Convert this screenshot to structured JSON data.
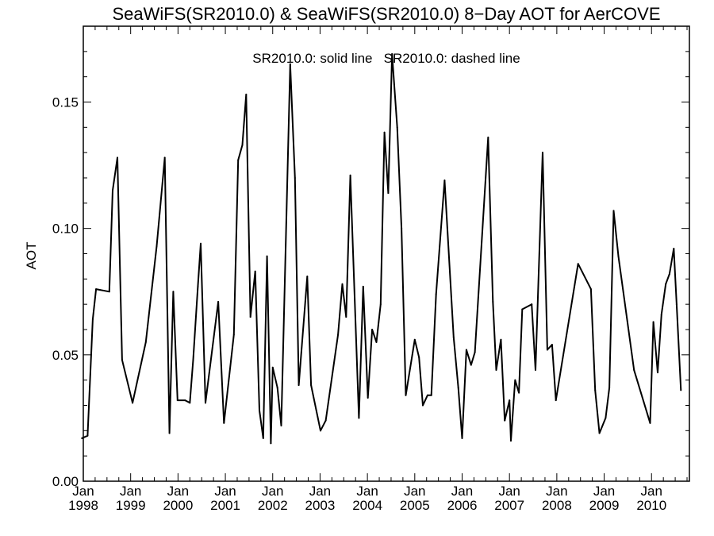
{
  "chart_data": {
    "type": "line",
    "title": "SeaWiFS(SR2010.0) & SeaWiFS(SR2010.0) 8−Day AOT for AerCOVE",
    "annotation": "SR2010.0: solid line   SR2010.0: dashed line",
    "ylabel": "AOT",
    "xlabel": "",
    "xlim": [
      1998.0,
      2010.8
    ],
    "ylim": [
      0.0,
      0.18
    ],
    "y_ticks": [
      "0.00",
      "0.05",
      "0.10",
      "0.15"
    ],
    "x_ticks": [
      {
        "month": "Jan",
        "year": "1998"
      },
      {
        "month": "Jan",
        "year": "1999"
      },
      {
        "month": "Jan",
        "year": "2000"
      },
      {
        "month": "Jan",
        "year": "2001"
      },
      {
        "month": "Jan",
        "year": "2002"
      },
      {
        "month": "Jan",
        "year": "2003"
      },
      {
        "month": "Jan",
        "year": "2004"
      },
      {
        "month": "Jan",
        "year": "2005"
      },
      {
        "month": "Jan",
        "year": "2006"
      },
      {
        "month": "Jan",
        "year": "2007"
      },
      {
        "month": "Jan",
        "year": "2008"
      },
      {
        "month": "Jan",
        "year": "2009"
      },
      {
        "month": "Jan",
        "year": "2010"
      }
    ],
    "line_color": "#000000",
    "series": [
      {
        "style": "solid",
        "points": [
          [
            1997.97,
            0.017
          ],
          [
            1998.09,
            0.018
          ],
          [
            1998.2,
            0.064
          ],
          [
            1998.27,
            0.076
          ],
          [
            1998.55,
            0.075
          ],
          [
            1998.62,
            0.115
          ],
          [
            1998.72,
            0.128
          ],
          [
            1998.82,
            0.048
          ],
          [
            1999.04,
            0.031
          ],
          [
            1999.32,
            0.055
          ],
          [
            1999.55,
            0.093
          ],
          [
            1999.72,
            0.128
          ],
          [
            1999.82,
            0.019
          ],
          [
            1999.9,
            0.075
          ],
          [
            1999.99,
            0.032
          ],
          [
            2000.15,
            0.032
          ],
          [
            2000.25,
            0.031
          ],
          [
            2000.32,
            0.048
          ],
          [
            2000.42,
            0.077
          ],
          [
            2000.48,
            0.094
          ],
          [
            2000.58,
            0.031
          ],
          [
            2000.85,
            0.071
          ],
          [
            2000.97,
            0.023
          ],
          [
            2001.18,
            0.058
          ],
          [
            2001.27,
            0.127
          ],
          [
            2001.36,
            0.133
          ],
          [
            2001.44,
            0.153
          ],
          [
            2001.53,
            0.065
          ],
          [
            2001.63,
            0.083
          ],
          [
            2001.72,
            0.028
          ],
          [
            2001.8,
            0.017
          ],
          [
            2001.88,
            0.089
          ],
          [
            2001.96,
            0.015
          ],
          [
            2002.0,
            0.045
          ],
          [
            2002.1,
            0.037
          ],
          [
            2002.18,
            0.022
          ],
          [
            2002.37,
            0.165
          ],
          [
            2002.47,
            0.12
          ],
          [
            2002.55,
            0.038
          ],
          [
            2002.73,
            0.081
          ],
          [
            2002.81,
            0.038
          ],
          [
            2003.01,
            0.02
          ],
          [
            2003.12,
            0.024
          ],
          [
            2003.38,
            0.058
          ],
          [
            2003.47,
            0.078
          ],
          [
            2003.55,
            0.065
          ],
          [
            2003.64,
            0.121
          ],
          [
            2003.82,
            0.025
          ],
          [
            2003.91,
            0.077
          ],
          [
            2004.01,
            0.033
          ],
          [
            2004.1,
            0.06
          ],
          [
            2004.19,
            0.055
          ],
          [
            2004.28,
            0.07
          ],
          [
            2004.36,
            0.138
          ],
          [
            2004.44,
            0.114
          ],
          [
            2004.52,
            0.169
          ],
          [
            2004.63,
            0.14
          ],
          [
            2004.72,
            0.1
          ],
          [
            2004.81,
            0.034
          ],
          [
            2005.0,
            0.056
          ],
          [
            2005.09,
            0.049
          ],
          [
            2005.17,
            0.03
          ],
          [
            2005.27,
            0.034
          ],
          [
            2005.35,
            0.034
          ],
          [
            2005.45,
            0.074
          ],
          [
            2005.63,
            0.119
          ],
          [
            2005.82,
            0.057
          ],
          [
            2005.92,
            0.037
          ],
          [
            2006.0,
            0.017
          ],
          [
            2006.09,
            0.052
          ],
          [
            2006.19,
            0.046
          ],
          [
            2006.27,
            0.051
          ],
          [
            2006.55,
            0.136
          ],
          [
            2006.65,
            0.071
          ],
          [
            2006.72,
            0.044
          ],
          [
            2006.82,
            0.056
          ],
          [
            2006.9,
            0.024
          ],
          [
            2007.0,
            0.032
          ],
          [
            2007.03,
            0.016
          ],
          [
            2007.12,
            0.04
          ],
          [
            2007.2,
            0.035
          ],
          [
            2007.27,
            0.068
          ],
          [
            2007.47,
            0.07
          ],
          [
            2007.55,
            0.044
          ],
          [
            2007.7,
            0.13
          ],
          [
            2007.8,
            0.052
          ],
          [
            2007.9,
            0.054
          ],
          [
            2007.98,
            0.032
          ],
          [
            2008.45,
            0.086
          ],
          [
            2008.72,
            0.076
          ],
          [
            2008.81,
            0.036
          ],
          [
            2008.9,
            0.019
          ],
          [
            2009.03,
            0.025
          ],
          [
            2009.11,
            0.037
          ],
          [
            2009.2,
            0.107
          ],
          [
            2009.3,
            0.089
          ],
          [
            2009.63,
            0.044
          ],
          [
            2009.97,
            0.023
          ],
          [
            2010.04,
            0.063
          ],
          [
            2010.13,
            0.043
          ],
          [
            2010.21,
            0.066
          ],
          [
            2010.3,
            0.078
          ],
          [
            2010.38,
            0.082
          ],
          [
            2010.47,
            0.092
          ],
          [
            2010.53,
            0.07
          ],
          [
            2010.62,
            0.036
          ]
        ]
      }
    ]
  }
}
